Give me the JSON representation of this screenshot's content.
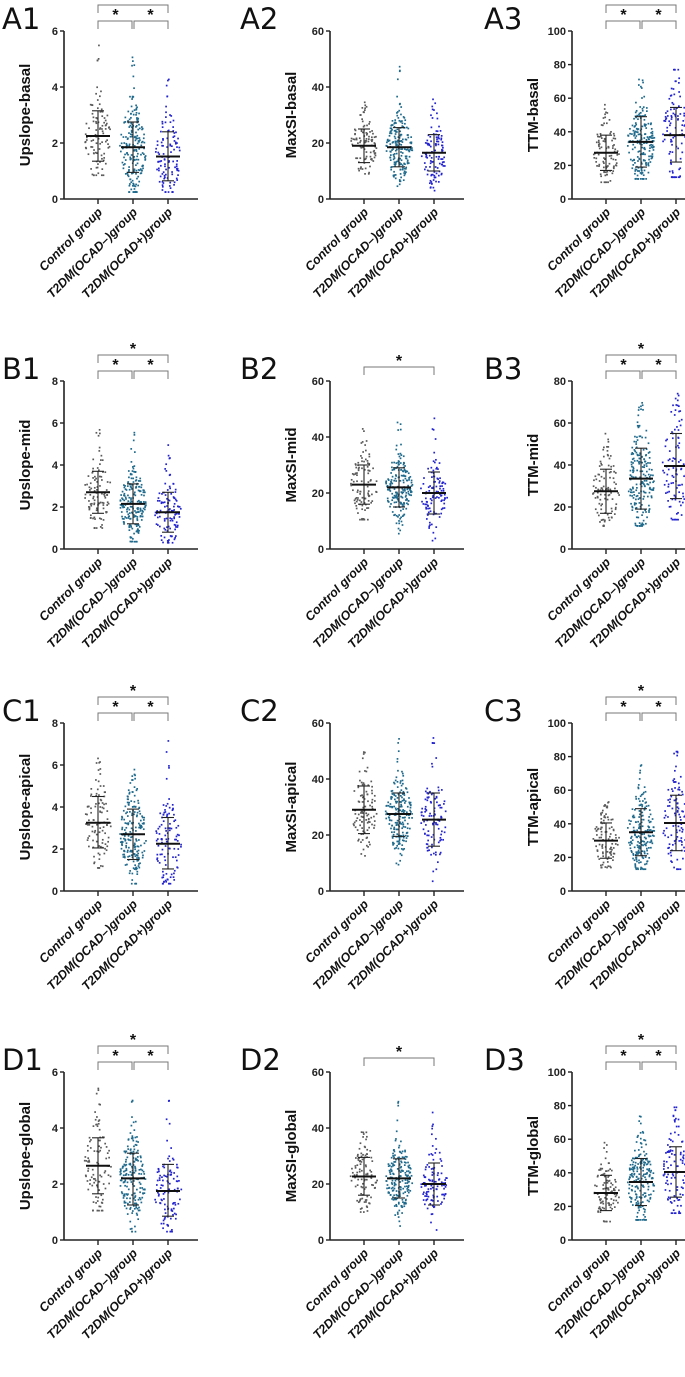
{
  "categories": [
    "Control group",
    "T2DM(OCAD–)group",
    "T2DM(OCAD+)group"
  ],
  "colors": {
    "control": "#5a5a5a",
    "ocad_neg": "#1f6a8c",
    "ocad_pos": "#2323d0"
  },
  "significance_marker": "*",
  "chart_data": [
    {
      "type": "scatter",
      "panel": "A1",
      "ylabel": "Upslope-basal",
      "ylim": [
        0,
        6
      ],
      "yticks": [
        0,
        2,
        4,
        6
      ],
      "means": [
        2.25,
        1.85,
        1.52
      ],
      "sd_upper": [
        3.15,
        2.75,
        2.4
      ],
      "sd_lower": [
        1.35,
        0.95,
        0.65
      ],
      "range": [
        [
          0.85,
          5.7
        ],
        [
          0.25,
          5.4
        ],
        [
          0.25,
          4.4
        ]
      ],
      "significant_pairs": [
        [
          0,
          1
        ],
        [
          1,
          2
        ],
        [
          0,
          2
        ]
      ]
    },
    {
      "type": "scatter",
      "panel": "A2",
      "ylabel": "MaxSI-basal",
      "ylim": [
        0,
        60
      ],
      "yticks": [
        0,
        20,
        40,
        60
      ],
      "means": [
        19,
        18.5,
        16.5
      ],
      "sd_upper": [
        25,
        25.5,
        23
      ],
      "sd_lower": [
        13,
        11.5,
        10
      ],
      "range": [
        [
          9,
          35
        ],
        [
          4,
          48
        ],
        [
          3,
          38
        ]
      ],
      "significant_pairs": []
    },
    {
      "type": "scatter",
      "panel": "A3",
      "ylabel": "TTM-basal",
      "ylim": [
        0,
        100
      ],
      "yticks": [
        0,
        20,
        40,
        60,
        80,
        100
      ],
      "means": [
        27.5,
        34,
        38
      ],
      "sd_upper": [
        38,
        49,
        54.5
      ],
      "sd_lower": [
        17,
        19,
        22
      ],
      "range": [
        [
          10,
          58
        ],
        [
          12,
          76
        ],
        [
          13,
          77
        ]
      ],
      "significant_pairs": [
        [
          0,
          1
        ],
        [
          1,
          2
        ],
        [
          0,
          2
        ]
      ]
    },
    {
      "type": "scatter",
      "panel": "B1",
      "ylabel": "Upslope-mid",
      "ylim": [
        0,
        8
      ],
      "yticks": [
        0,
        2,
        4,
        6,
        8
      ],
      "means": [
        2.7,
        2.15,
        1.75
      ],
      "sd_upper": [
        3.7,
        3.1,
        2.7
      ],
      "sd_lower": [
        1.7,
        1.2,
        0.8
      ],
      "range": [
        [
          1.0,
          5.8
        ],
        [
          0.35,
          5.6
        ],
        [
          0.3,
          5.2
        ]
      ],
      "significant_pairs": [
        [
          0,
          1
        ],
        [
          1,
          2
        ],
        [
          0,
          2
        ]
      ]
    },
    {
      "type": "scatter",
      "panel": "B2",
      "ylabel": "MaxSI-mid",
      "ylim": [
        0,
        60
      ],
      "yticks": [
        0,
        20,
        40,
        60
      ],
      "means": [
        23,
        22,
        20
      ],
      "sd_upper": [
        30,
        29,
        27.5
      ],
      "sd_lower": [
        16,
        15,
        12.5
      ],
      "range": [
        [
          10.5,
          43
        ],
        [
          5.5,
          51
        ],
        [
          3,
          47
        ]
      ],
      "significant_pairs": [
        [
          0,
          2
        ]
      ]
    },
    {
      "type": "scatter",
      "panel": "B3",
      "ylabel": "TTM-mid",
      "ylim": [
        0,
        80
      ],
      "yticks": [
        0,
        20,
        40,
        60,
        80
      ],
      "means": [
        27.5,
        33.5,
        39.5
      ],
      "sd_upper": [
        38,
        48,
        55
      ],
      "sd_lower": [
        17,
        19,
        24
      ],
      "range": [
        [
          11,
          55
        ],
        [
          11,
          76
        ],
        [
          14,
          74
        ]
      ],
      "significant_pairs": [
        [
          0,
          1
        ],
        [
          1,
          2
        ],
        [
          0,
          2
        ]
      ]
    },
    {
      "type": "scatter",
      "panel": "C1",
      "ylabel": "Upslope-apical",
      "ylim": [
        0,
        8
      ],
      "yticks": [
        0,
        2,
        4,
        6,
        8
      ],
      "means": [
        3.25,
        2.7,
        2.25
      ],
      "sd_upper": [
        4.5,
        3.9,
        3.5
      ],
      "sd_lower": [
        2.05,
        1.5,
        1.05
      ],
      "range": [
        [
          1.1,
          6.4
        ],
        [
          0.35,
          6.2
        ],
        [
          0.35,
          7.2
        ]
      ],
      "significant_pairs": [
        [
          0,
          1
        ],
        [
          1,
          2
        ],
        [
          0,
          2
        ]
      ]
    },
    {
      "type": "scatter",
      "panel": "C2",
      "ylabel": "MaxSI-apical",
      "ylim": [
        0,
        60
      ],
      "yticks": [
        0,
        20,
        40,
        60
      ],
      "means": [
        29,
        27.5,
        25.5
      ],
      "sd_upper": [
        37.5,
        35,
        35
      ],
      "sd_lower": [
        20.5,
        19.5,
        16
      ],
      "range": [
        [
          12,
          51
        ],
        [
          5.5,
          55
        ],
        [
          3.5,
          55
        ]
      ],
      "significant_pairs": []
    },
    {
      "type": "scatter",
      "panel": "C3",
      "ylabel": "TTM-apical",
      "ylim": [
        0,
        100
      ],
      "yticks": [
        0,
        20,
        40,
        60,
        80,
        100
      ],
      "means": [
        30,
        35,
        40.5
      ],
      "sd_upper": [
        40.5,
        49,
        57
      ],
      "sd_lower": [
        19.5,
        21,
        24
      ],
      "range": [
        [
          14,
          53
        ],
        [
          13,
          75
        ],
        [
          13,
          83
        ]
      ],
      "significant_pairs": [
        [
          0,
          1
        ],
        [
          1,
          2
        ],
        [
          0,
          2
        ]
      ]
    },
    {
      "type": "scatter",
      "panel": "D1",
      "ylabel": "Upslope-global",
      "ylim": [
        0,
        6
      ],
      "yticks": [
        0,
        2,
        4,
        6
      ],
      "means": [
        2.65,
        2.2,
        1.75
      ],
      "sd_upper": [
        3.65,
        3.1,
        2.7
      ],
      "sd_lower": [
        1.65,
        1.25,
        0.85
      ],
      "range": [
        [
          1.05,
          5.5
        ],
        [
          0.3,
          5.2
        ],
        [
          0.3,
          5.0
        ]
      ],
      "significant_pairs": [
        [
          0,
          1
        ],
        [
          1,
          2
        ],
        [
          0,
          2
        ]
      ]
    },
    {
      "type": "scatter",
      "panel": "D2",
      "ylabel": "MaxSI-global",
      "ylim": [
        0,
        60
      ],
      "yticks": [
        0,
        20,
        40,
        60
      ],
      "means": [
        22.7,
        22,
        20
      ],
      "sd_upper": [
        29.5,
        29,
        27.5
      ],
      "sd_lower": [
        16,
        15,
        12.5
      ],
      "range": [
        [
          10,
          40
        ],
        [
          5,
          51
        ],
        [
          3,
          46
        ]
      ],
      "significant_pairs": [
        [
          0,
          2
        ]
      ]
    },
    {
      "type": "scatter",
      "panel": "D3",
      "ylabel": "TTM-global",
      "ylim": [
        0,
        100
      ],
      "yticks": [
        0,
        20,
        40,
        60,
        80,
        100
      ],
      "means": [
        28,
        34.5,
        40.5
      ],
      "sd_upper": [
        38.5,
        48.5,
        55.5
      ],
      "sd_lower": [
        17.5,
        20.5,
        25.5
      ],
      "range": [
        [
          11,
          59
        ],
        [
          12,
          79
        ],
        [
          16,
          79
        ]
      ],
      "significant_pairs": [
        [
          0,
          1
        ],
        [
          1,
          2
        ],
        [
          0,
          2
        ]
      ]
    }
  ]
}
